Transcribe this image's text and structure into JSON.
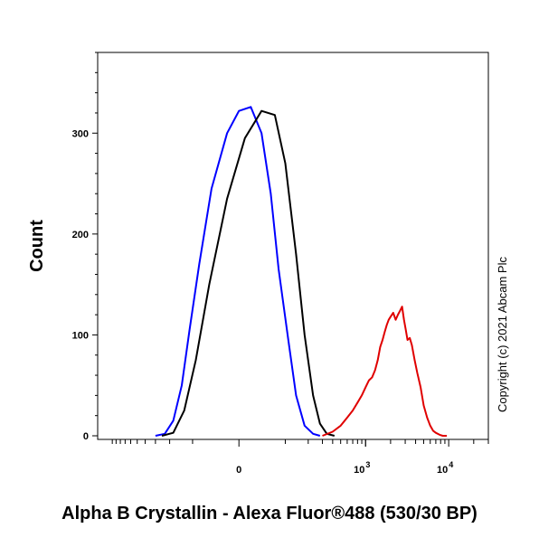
{
  "chart_data": {
    "type": "line",
    "title": "",
    "xlabel": "Alpha B Crystallin - Alexa Fluor®488 (530/30 BP)",
    "ylabel": "Count",
    "x_scale": "biexponential",
    "xlim": [
      -1500,
      30000
    ],
    "ylim": [
      0,
      380
    ],
    "yticks": [
      0,
      100,
      200,
      300
    ],
    "xticks": [
      {
        "value": 0,
        "label": "0",
        "exp": ""
      },
      {
        "value": 1000,
        "label": "10",
        "exp": "3"
      },
      {
        "value": 10000,
        "label": "10",
        "exp": "4"
      }
    ],
    "grid": false,
    "legend": "none",
    "annotation": "Copyright (c) 2021 Abcam Plc",
    "series": [
      {
        "color": "#0000ff",
        "x": [
          -300,
          -230,
          -180,
          -140,
          -110,
          -80,
          -50,
          -20,
          0,
          20,
          40,
          60,
          80,
          110,
          140,
          180,
          230,
          280
        ],
        "y": [
          0,
          2,
          15,
          50,
          105,
          170,
          245,
          300,
          322,
          326,
          300,
          240,
          165,
          95,
          40,
          10,
          2,
          0
        ]
      },
      {
        "color": "#000000",
        "x": [
          -250,
          -180,
          -130,
          -90,
          -55,
          -20,
          10,
          40,
          70,
          100,
          140,
          180,
          230,
          280,
          340,
          420
        ],
        "y": [
          0,
          3,
          25,
          75,
          150,
          235,
          295,
          322,
          318,
          270,
          180,
          100,
          40,
          12,
          2,
          0
        ]
      },
      {
        "color": "#e00000",
        "x": [
          300,
          400,
          500,
          600,
          700,
          800,
          900,
          1000,
          1100,
          1200,
          1300,
          1400,
          1500,
          1600,
          1700,
          1800,
          1900,
          2000,
          2150,
          2300,
          2450,
          2600,
          2750,
          2900,
          3050,
          3200,
          3400,
          3600,
          3900,
          4200,
          4600,
          5000,
          5500,
          6000,
          6500,
          7000,
          7800,
          8500,
          9500
        ],
        "y": [
          0,
          4,
          10,
          18,
          25,
          33,
          40,
          48,
          55,
          58,
          65,
          75,
          88,
          95,
          103,
          110,
          115,
          118,
          122,
          115,
          120,
          124,
          128,
          115,
          105,
          95,
          97,
          90,
          75,
          62,
          48,
          30,
          18,
          10,
          5,
          3,
          1,
          0,
          0
        ]
      }
    ]
  }
}
